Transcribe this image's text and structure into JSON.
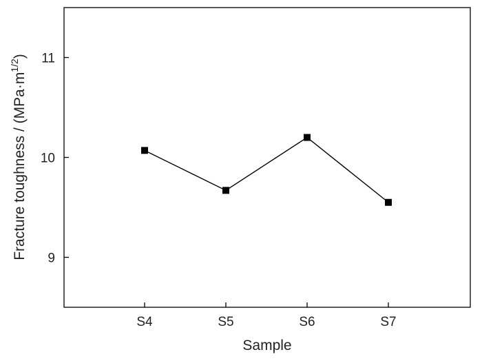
{
  "chart_data": {
    "type": "line",
    "categories": [
      "S4",
      "S5",
      "S6",
      "S7"
    ],
    "values": [
      10.07,
      9.67,
      10.2,
      9.55
    ],
    "xlabel": "Sample",
    "ylabel": "Fracture toughness / (MPa·m",
    "ylabel_sup": "1/2",
    "ylabel_tail": ")",
    "ylim": [
      8.5,
      11.5
    ],
    "yticks": [
      9,
      10,
      11
    ],
    "ytick_labels": [
      "9",
      "10",
      "11"
    ],
    "marker": "square",
    "grid": false,
    "line_color": "#000000"
  }
}
